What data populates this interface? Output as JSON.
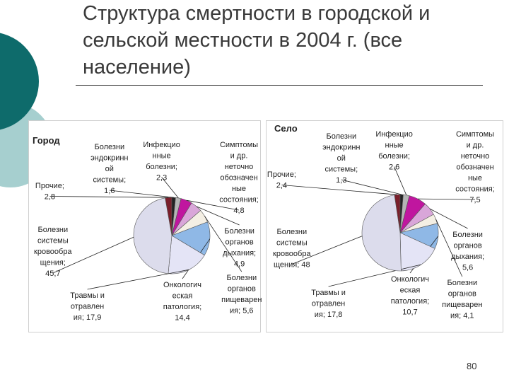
{
  "slide": {
    "title": "Структура смертности в городской и сельской местности в 2004 г. (все население)",
    "number": "80"
  },
  "colors": {
    "teal_dark": "#0e6b6b",
    "teal_light": "#a6cfcf"
  },
  "chart_data": [
    {
      "type": "pie",
      "title": "Город",
      "slices": [
        {
          "label": [
            "Прочие;",
            "2,8"
          ],
          "value": 2.8,
          "color": "#7a1f2b"
        },
        {
          "label": [
            "Болезни",
            "эндокринн",
            "ой",
            "системы;",
            "1,6"
          ],
          "value": 1.6,
          "color": "#222222"
        },
        {
          "label": [
            "Инфекцио",
            "нные",
            "болезни;",
            "2,3"
          ],
          "value": 2.3,
          "color": "#b5b5b5"
        },
        {
          "label": [
            "Симптомы",
            "и др.",
            "неточно",
            "обозначен",
            "ные",
            "состояния;",
            "4,8"
          ],
          "value": 4.8,
          "color": "#c0169f"
        },
        {
          "label": [
            "Болезни",
            "органов",
            "дыхания;",
            "4,9"
          ],
          "value": 4.9,
          "color": "#d9a6d9"
        },
        {
          "label": [
            "Болезни",
            "органов",
            "пищеварен",
            "ия; 5,6"
          ],
          "value": 5.6,
          "color": "#f4efe4"
        },
        {
          "label": [
            "Онкологич",
            "еская",
            "патология;",
            "14,4"
          ],
          "value": 14.4,
          "color": "#8fb8e6"
        },
        {
          "label": [
            "Травмы и",
            "отравлен",
            "ия; 17,9"
          ],
          "value": 17.9,
          "color": "#e4e4f6"
        },
        {
          "label": [
            "Болезни",
            "системы",
            "кровообра",
            "щения;",
            "45,7"
          ],
          "value": 45.7,
          "color": "#dcdcec"
        }
      ]
    },
    {
      "type": "pie",
      "title": "Село",
      "slices": [
        {
          "label": [
            "Прочие;",
            "2,4"
          ],
          "value": 2.4,
          "color": "#7a1f2b"
        },
        {
          "label": [
            "Болезни",
            "эндокринн",
            "ой",
            "системы;",
            "1,3"
          ],
          "value": 1.3,
          "color": "#222222"
        },
        {
          "label": [
            "Инфекцио",
            "нные",
            "болезни;",
            "2,6"
          ],
          "value": 2.6,
          "color": "#b5b5b5"
        },
        {
          "label": [
            "Симптомы",
            "и др.",
            "неточно",
            "обозначен",
            "ные",
            "состояния;",
            "7,5"
          ],
          "value": 7.5,
          "color": "#c0169f"
        },
        {
          "label": [
            "Болезни",
            "органов",
            "дыхания;",
            "5,6"
          ],
          "value": 5.6,
          "color": "#d9a6d9"
        },
        {
          "label": [
            "Болезни",
            "органов",
            "пищеварен",
            "ия; 4,1"
          ],
          "value": 4.1,
          "color": "#f4efe4"
        },
        {
          "label": [
            "Онкологич",
            "еская",
            "патология;",
            "10,7"
          ],
          "value": 10.7,
          "color": "#8fb8e6"
        },
        {
          "label": [
            "Травмы и",
            "отравлен",
            "ия; 17,8"
          ],
          "value": 17.8,
          "color": "#e4e4f6"
        },
        {
          "label": [
            "Болезни",
            "системы",
            "кровообра",
            "щения; 48"
          ],
          "value": 48,
          "color": "#dcdcec"
        }
      ]
    }
  ]
}
